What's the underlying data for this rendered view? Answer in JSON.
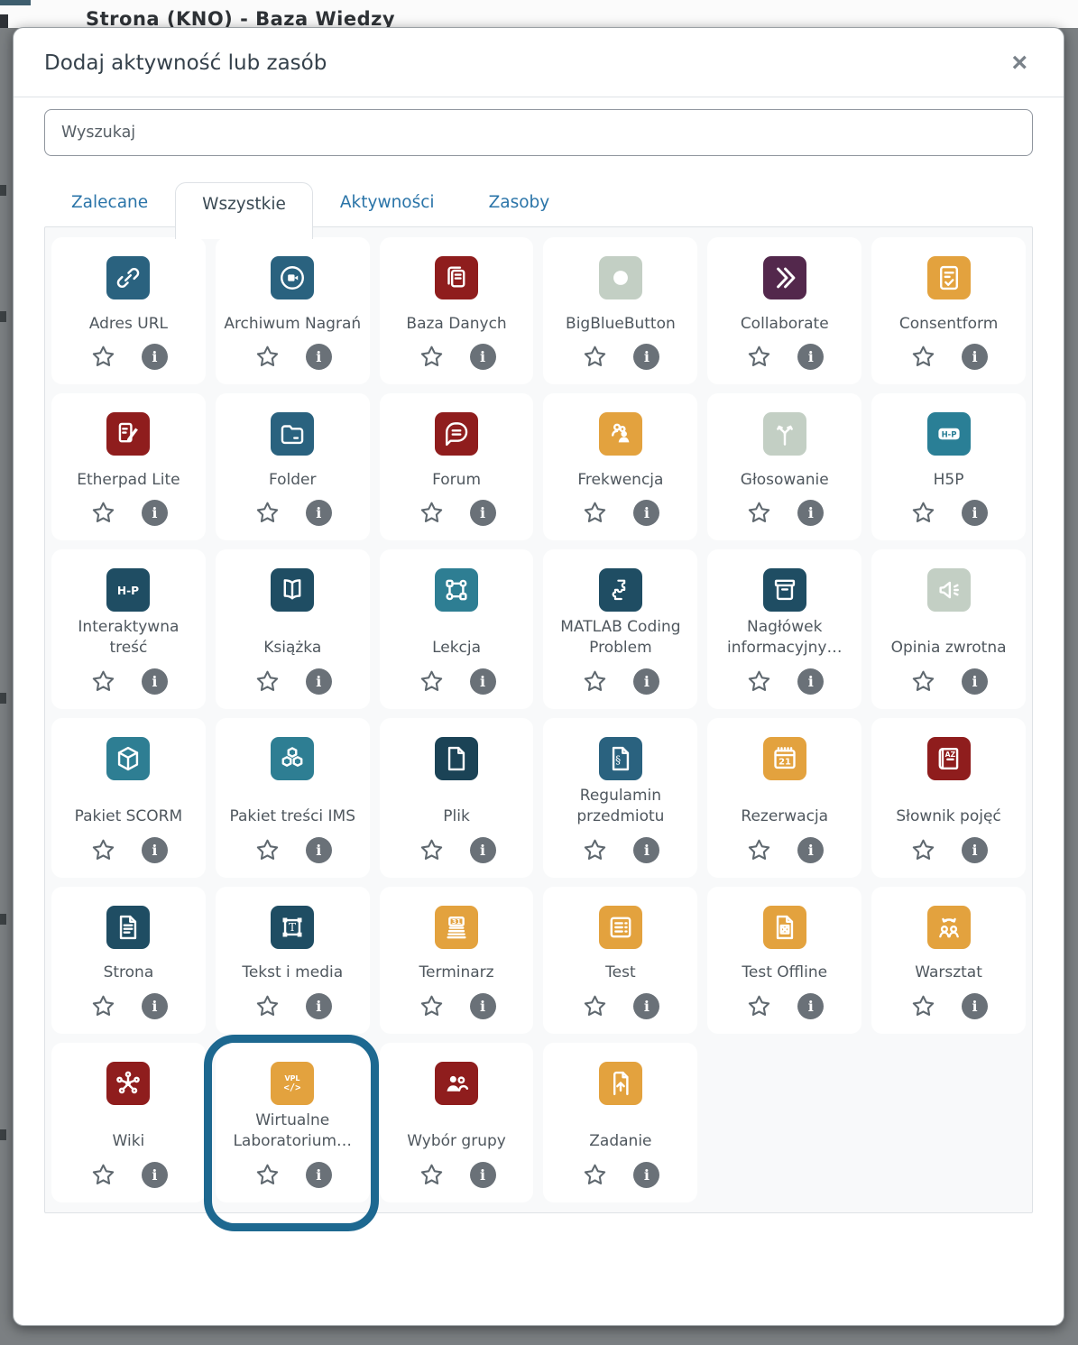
{
  "backdrop": {
    "page_text_fragment": "Strona (KNO) - Baza Wiedzy"
  },
  "dialog": {
    "title": "Dodaj aktywność lub zasób",
    "close_label": "×",
    "search": {
      "placeholder": "Wyszukaj",
      "value": ""
    },
    "tabs": [
      {
        "label": "Zalecane",
        "active": false
      },
      {
        "label": "Wszystkie",
        "active": true
      },
      {
        "label": "Aktywności",
        "active": false
      },
      {
        "label": "Zasoby",
        "active": false
      }
    ],
    "card_actions": {
      "favorite_icon": "star-outline",
      "info_icon": "info-circle",
      "info_glyph": "i"
    },
    "highlight": {
      "color": "#1D6890",
      "target": "wirtualne-laboratorium"
    },
    "cards": [
      {
        "id": "adres-url",
        "label": "Adres URL",
        "icon": "link-icon",
        "color": "#2A627F"
      },
      {
        "id": "archiwum-nagran",
        "label": "Archiwum Nagrań",
        "icon": "video-record-icon",
        "color": "#2A627F"
      },
      {
        "id": "baza-danych",
        "label": "Baza Danych",
        "icon": "copy-docs-icon",
        "color": "#8F1D1D"
      },
      {
        "id": "bigbluebutton",
        "label": "BigBlueButton",
        "icon": "circle-icon",
        "color": "#C3CFC4"
      },
      {
        "id": "collaborate",
        "label": "Collaborate",
        "icon": "double-chevron-icon",
        "color": "#53284C"
      },
      {
        "id": "consentform",
        "label": "Consentform",
        "icon": "doc-check-icon",
        "color": "#E3A23E"
      },
      {
        "id": "etherpad-lite",
        "label": "Etherpad Lite",
        "icon": "pad-pencil-icon",
        "color": "#8F1D1D"
      },
      {
        "id": "folder",
        "label": "Folder",
        "icon": "folder-icon",
        "color": "#2A627F"
      },
      {
        "id": "forum",
        "label": "Forum",
        "icon": "comment-icon",
        "color": "#8F1D1D"
      },
      {
        "id": "frekwencja",
        "label": "Frekwencja",
        "icon": "people-attend-icon",
        "color": "#E3A23E"
      },
      {
        "id": "glosowanie",
        "label": "Głosowanie",
        "icon": "fork-path-icon",
        "color": "#C3CFC4"
      },
      {
        "id": "h5p",
        "label": "H5P",
        "icon": "h5p-box-icon",
        "color": "#2A7F96"
      },
      {
        "id": "interaktywna-tresc",
        "label": "Interaktywna treść",
        "icon": "h5p-text-icon",
        "color": "#1F4D63"
      },
      {
        "id": "ksiazka",
        "label": "Książka",
        "icon": "book-open-icon",
        "color": "#1F4D63"
      },
      {
        "id": "lekcja",
        "label": "Lekcja",
        "icon": "sitemap-icon",
        "color": "#2E7E93"
      },
      {
        "id": "matlab-coding-problem",
        "label": "MATLAB Coding Problem",
        "icon": "puzzle-icon",
        "color": "#1F4D63"
      },
      {
        "id": "naglowek-informacyjny",
        "label": "Nagłówek informacyjny…",
        "icon": "archive-box-icon",
        "color": "#1F4D63"
      },
      {
        "id": "opinia-zwrotna",
        "label": "Opinia zwrotna",
        "icon": "megaphone-icon",
        "color": "#C3CFC4"
      },
      {
        "id": "pakiet-scorm",
        "label": "Pakiet SCORM",
        "icon": "cube-icon",
        "color": "#2E7E93"
      },
      {
        "id": "pakiet-tresci-ims",
        "label": "Pakiet treści IMS",
        "icon": "cubes-icon",
        "color": "#2E7E93"
      },
      {
        "id": "plik",
        "label": "Plik",
        "icon": "file-icon",
        "color": "#1B4356"
      },
      {
        "id": "regulamin-przedmiotu",
        "label": "Regulamin przedmiotu",
        "icon": "file-section-icon",
        "color": "#2A627F"
      },
      {
        "id": "rezerwacja",
        "label": "Rezerwacja",
        "icon": "calendar-21-icon",
        "color": "#E3A23E"
      },
      {
        "id": "slownik-pojec",
        "label": "Słownik pojęć",
        "icon": "book-az-icon",
        "color": "#8F1D1D"
      },
      {
        "id": "strona",
        "label": "Strona",
        "icon": "doc-lines-icon",
        "color": "#1F4D63"
      },
      {
        "id": "tekst-i-media",
        "label": "Tekst i media",
        "icon": "text-frame-icon",
        "color": "#1F4D63"
      },
      {
        "id": "terminarz",
        "label": "Terminarz",
        "icon": "calendar-31-icon",
        "color": "#E3A23E"
      },
      {
        "id": "test",
        "label": "Test",
        "icon": "checklist-icon",
        "color": "#E3A23E"
      },
      {
        "id": "test-offline",
        "label": "Test Offline",
        "icon": "doc-x-icon",
        "color": "#E3A23E"
      },
      {
        "id": "warsztat",
        "label": "Warsztat",
        "icon": "people-arrows-icon",
        "color": "#E3A23E"
      },
      {
        "id": "wiki",
        "label": "Wiki",
        "icon": "share-network-icon",
        "color": "#8F1D1D"
      },
      {
        "id": "wirtualne-laboratorium",
        "label": "Wirtualne Laboratorium…",
        "icon": "vpl-code-icon",
        "color": "#E3A23E",
        "highlighted": true
      },
      {
        "id": "wybor-grupy",
        "label": "Wybór grupy",
        "icon": "people-group-icon",
        "color": "#8F1D1D"
      },
      {
        "id": "zadanie",
        "label": "Zadanie",
        "icon": "file-upload-icon",
        "color": "#E3A23E"
      }
    ]
  },
  "colors": {
    "backdrop": "#7B7F82",
    "modal_bg": "#FFFFFF",
    "content_bg": "#F8F9FA",
    "border": "#DEE2E6",
    "tab_link": "#2A74A8",
    "text_primary": "#35414B",
    "card_label": "#4F575E",
    "info_gray": "#6A7178",
    "star_gray": "#5F686F",
    "highlight_ring": "#1D6890"
  }
}
